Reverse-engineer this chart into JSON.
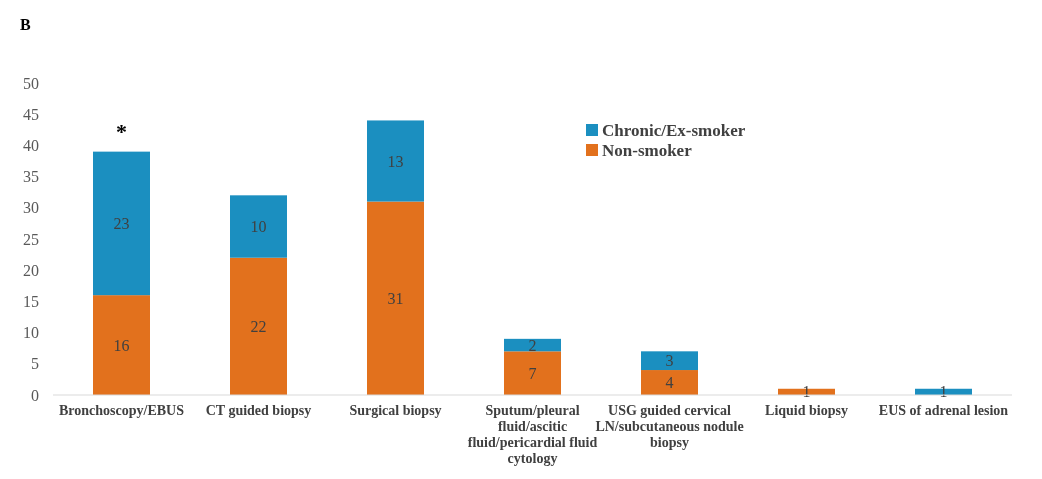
{
  "chart_data": {
    "type": "bar",
    "title": "B",
    "stacked": true,
    "categories": [
      "Bronchoscopy/EBUS",
      "CT guided biopsy",
      "Surgical biopsy",
      "Sputum/pleural fluid/ascitic fluid/pericardial fluid cytology",
      "USG guided cervical LN/subcutaneous nodule biopsy",
      "Liquid biopsy",
      "EUS of adrenal lesion"
    ],
    "series": [
      {
        "name": "Non-smoker",
        "color": "#e2711d",
        "values": [
          16,
          22,
          31,
          7,
          4,
          1,
          0
        ],
        "value_labels": [
          "16",
          "22",
          "31",
          "7",
          "4",
          "1",
          null
        ]
      },
      {
        "name": "Chronic/Ex-smoker",
        "color": "#1b8fc0",
        "values": [
          23,
          10,
          13,
          2,
          3,
          0,
          1
        ],
        "value_labels": [
          "23",
          "10",
          "13",
          "2",
          "3",
          null,
          "1"
        ]
      }
    ],
    "ylim": [
      0,
      50
    ],
    "yticks": [
      0,
      5,
      10,
      15,
      20,
      25,
      30,
      35,
      40,
      45,
      50
    ],
    "grid": false,
    "legend": "top",
    "annotations": [
      "*"
    ]
  }
}
